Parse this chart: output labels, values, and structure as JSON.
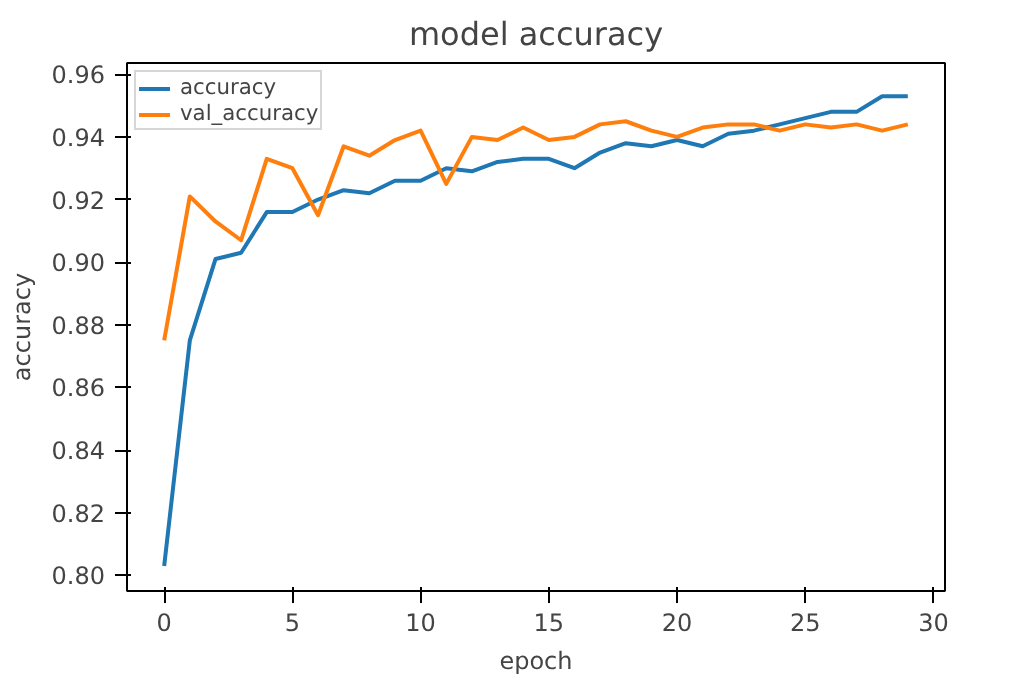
{
  "chart_data": {
    "type": "line",
    "title": "model accuracy",
    "xlabel": "epoch",
    "ylabel": "accuracy",
    "x": [
      0,
      1,
      2,
      3,
      4,
      5,
      6,
      7,
      8,
      9,
      10,
      11,
      12,
      13,
      14,
      15,
      16,
      17,
      18,
      19,
      20,
      21,
      22,
      23,
      24,
      25,
      26,
      27,
      28,
      29
    ],
    "series": [
      {
        "name": "accuracy",
        "color": "#1f77b4",
        "values": [
          0.803,
          0.875,
          0.901,
          0.903,
          0.916,
          0.916,
          0.92,
          0.923,
          0.922,
          0.926,
          0.926,
          0.93,
          0.929,
          0.932,
          0.933,
          0.933,
          0.93,
          0.935,
          0.938,
          0.937,
          0.939,
          0.937,
          0.941,
          0.942,
          0.944,
          0.946,
          0.948,
          0.948,
          0.953,
          0.953
        ]
      },
      {
        "name": "val_accuracy",
        "color": "#ff7f0e",
        "values": [
          0.875,
          0.921,
          0.913,
          0.907,
          0.933,
          0.93,
          0.915,
          0.937,
          0.934,
          0.939,
          0.942,
          0.925,
          0.94,
          0.939,
          0.943,
          0.939,
          0.94,
          0.944,
          0.945,
          0.942,
          0.94,
          0.943,
          0.944,
          0.944,
          0.942,
          0.944,
          0.943,
          0.944,
          0.942,
          0.944
        ]
      }
    ],
    "xlim": [
      -1.45,
      30.45
    ],
    "ylim": [
      0.795,
      0.9636
    ],
    "xticks": [
      0,
      5,
      10,
      15,
      20,
      25,
      30
    ],
    "yticks": [
      {
        "value": 0.8,
        "label": "0.80"
      },
      {
        "value": 0.82,
        "label": "0.82"
      },
      {
        "value": 0.84,
        "label": "0.84"
      },
      {
        "value": 0.86,
        "label": "0.86"
      },
      {
        "value": 0.88,
        "label": "0.88"
      },
      {
        "value": 0.9,
        "label": "0.90"
      },
      {
        "value": 0.92,
        "label": "0.92"
      },
      {
        "value": 0.94,
        "label": "0.94"
      },
      {
        "value": 0.96,
        "label": "0.96"
      }
    ],
    "grid": false,
    "legend": "top left",
    "marker": "none",
    "line_style": "solid"
  }
}
